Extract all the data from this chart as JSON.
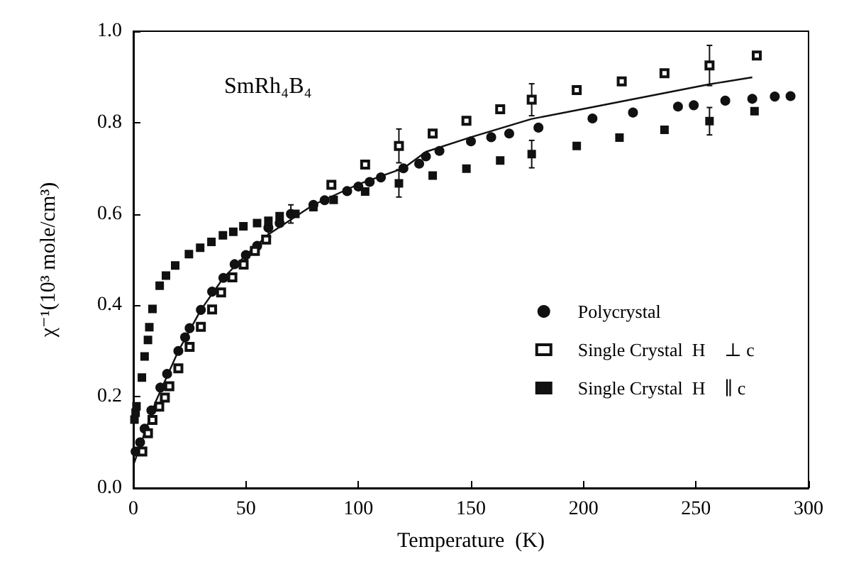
{
  "chart_data": {
    "type": "scatter",
    "xlabel": "Temperature  (K)",
    "ylabel": "χ⁻¹(10³ mole/cm³)",
    "annotations": [
      "SmRh₄B₄"
    ],
    "xlim": [
      0,
      300
    ],
    "xticks": [
      0,
      50,
      100,
      150,
      200,
      250,
      300
    ],
    "ylim": [
      0,
      1
    ],
    "yticks": [
      {
        "value": 0,
        "label": "0.0"
      },
      0.2,
      0.4,
      0.6,
      0.8,
      {
        "value": 1,
        "label": "1.0"
      }
    ],
    "grid": false,
    "legend": "right",
    "series": [
      {
        "name": "Polycrystal",
        "color": "#111111",
        "marker": "circle",
        "x": [
          1,
          3,
          5,
          8,
          12,
          15,
          20,
          23,
          25,
          30,
          35,
          40,
          45,
          50,
          55,
          60,
          65,
          70,
          80,
          85,
          95,
          100,
          105,
          110,
          120,
          127,
          130,
          136,
          150,
          159,
          167,
          180,
          204,
          222,
          242,
          249,
          263,
          275,
          285,
          292
        ],
        "values": [
          0.08,
          0.1,
          0.13,
          0.17,
          0.22,
          0.25,
          0.3,
          0.33,
          0.35,
          0.39,
          0.43,
          0.46,
          0.49,
          0.51,
          0.53,
          0.57,
          0.58,
          0.6,
          0.62,
          0.63,
          0.65,
          0.66,
          0.67,
          0.68,
          0.7,
          0.71,
          0.726,
          0.738,
          0.759,
          0.768,
          0.776,
          0.789,
          0.809,
          0.822,
          0.835,
          0.838,
          0.848,
          0.852,
          0.857,
          0.858
        ],
        "errors": [
          null,
          null,
          null,
          null,
          null,
          null,
          null,
          null,
          null,
          null,
          null,
          null,
          null,
          null,
          null,
          0.02,
          null,
          0.02,
          null,
          null,
          null,
          null,
          null,
          null,
          null,
          null,
          null,
          null,
          null,
          null,
          null,
          null,
          null,
          null,
          null,
          null,
          null,
          null,
          null,
          null
        ]
      },
      {
        "name": "Single Crystal  H⃗ ⊥ c⃗",
        "color": "#111111",
        "marker": "square",
        "x": [
          4,
          6.5,
          8.5,
          11.5,
          14,
          16,
          20,
          25,
          30,
          35,
          39,
          44,
          49,
          54,
          59,
          88,
          103,
          118,
          133,
          148,
          163,
          177,
          197,
          217,
          236,
          256,
          277
        ],
        "values": [
          0.08,
          0.12,
          0.149,
          0.178,
          0.198,
          0.223,
          0.262,
          0.309,
          0.353,
          0.391,
          0.428,
          0.461,
          0.489,
          0.519,
          0.544,
          0.664,
          0.708,
          0.749,
          0.776,
          0.804,
          0.829,
          0.85,
          0.871,
          0.89,
          0.908,
          0.925,
          0.947
        ],
        "errors": [
          null,
          null,
          null,
          null,
          null,
          null,
          null,
          null,
          null,
          null,
          null,
          null,
          null,
          null,
          null,
          null,
          null,
          0.037,
          null,
          null,
          null,
          0.035,
          null,
          null,
          null,
          0.044,
          null
        ]
      },
      {
        "name": "Single Crystal  H⃗ ∥ c⃗",
        "color": "#111111",
        "marker": "square",
        "x": [
          0.5,
          1,
          1.4,
          3.8,
          5,
          6.5,
          7.1,
          8.5,
          11.7,
          14.5,
          18.6,
          24.7,
          29.7,
          34.7,
          39.8,
          44.4,
          48.9,
          55,
          60,
          65,
          72,
          80,
          89,
          103,
          118,
          133,
          148,
          163,
          177,
          197,
          216,
          236,
          256,
          276
        ],
        "values": [
          0.15,
          0.165,
          0.179,
          0.242,
          0.288,
          0.324,
          0.352,
          0.392,
          0.443,
          0.465,
          0.487,
          0.512,
          0.526,
          0.539,
          0.553,
          0.561,
          0.573,
          0.58,
          0.585,
          0.595,
          0.6,
          0.615,
          0.631,
          0.649,
          0.667,
          0.684,
          0.699,
          0.717,
          0.731,
          0.749,
          0.767,
          0.784,
          0.803,
          0.825
        ],
        "errors": [
          null,
          null,
          null,
          null,
          null,
          null,
          null,
          null,
          null,
          null,
          null,
          null,
          null,
          null,
          null,
          null,
          null,
          null,
          null,
          null,
          null,
          null,
          null,
          null,
          0.03,
          null,
          null,
          null,
          0.03,
          null,
          null,
          null,
          0.03,
          null
        ]
      },
      {
        "type": "line",
        "color": "#111111",
        "marker": "none",
        "line_style": "solid",
        "x": [
          0,
          5,
          10,
          20,
          30,
          40,
          50,
          60,
          80,
          100,
          120,
          130,
          150,
          177,
          200,
          256,
          275
        ],
        "values": [
          0.05,
          0.12,
          0.19,
          0.3,
          0.39,
          0.46,
          0.51,
          0.555,
          0.62,
          0.665,
          0.7,
          0.736,
          0.768,
          0.808,
          0.83,
          0.884,
          0.899
        ]
      }
    ]
  }
}
